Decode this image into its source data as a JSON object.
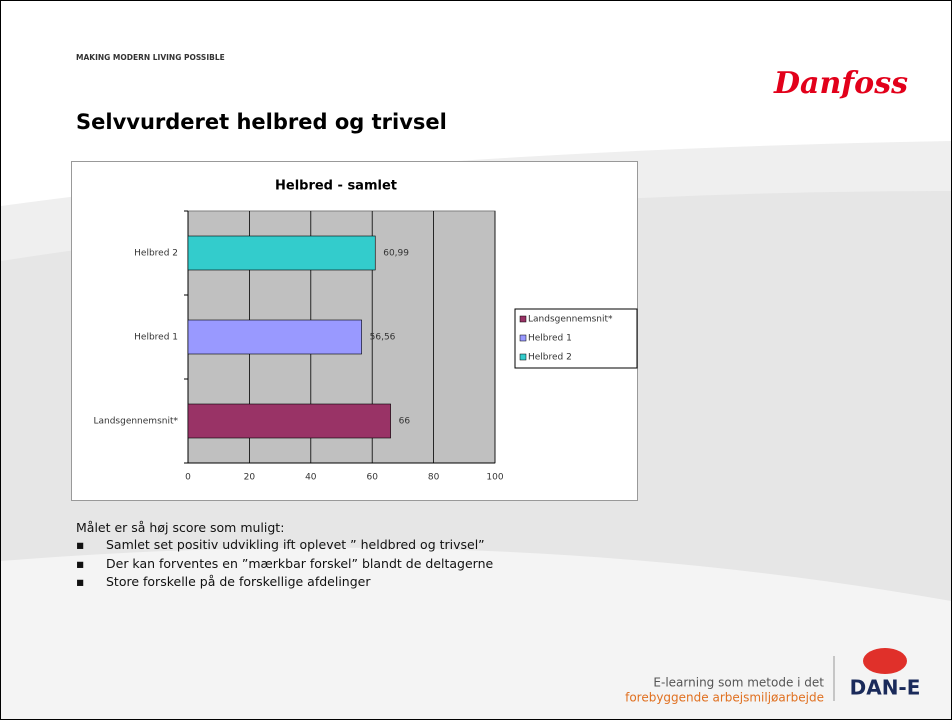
{
  "header": {
    "tagline": "MAKING MODERN LIVING POSSIBLE",
    "logo": "Danfoss",
    "title": "Selvvurderet helbred og trivsel"
  },
  "chart_data": {
    "type": "bar",
    "orientation": "horizontal",
    "title": "Helbred - samlet",
    "categories": [
      "Landsgennemsnit*",
      "Helbred 1",
      "Helbred 2"
    ],
    "values": [
      66,
      56.56,
      60.99
    ],
    "value_labels": [
      "66",
      "56,56",
      "60,99"
    ],
    "colors": [
      "#993366",
      "#9999ff",
      "#33cccc"
    ],
    "xlim": [
      0,
      100
    ],
    "xticks": [
      0,
      20,
      40,
      60,
      80,
      100
    ],
    "grid": true,
    "legend": "right"
  },
  "body": {
    "intro": "Målet er så høj score som muligt:",
    "bullets": [
      "Samlet set positiv  udvikling ift oplevet ” heldbred og trivsel”",
      "Der kan forventes en ”mærkbar forskel” blandt de deltagerne",
      "Store forskelle på de forskellige afdelinger"
    ]
  },
  "footer": {
    "line1": "E-learning som metode i det",
    "line2": "forebyggende arbejsmiljøarbejde",
    "logo": "DAN-E"
  }
}
